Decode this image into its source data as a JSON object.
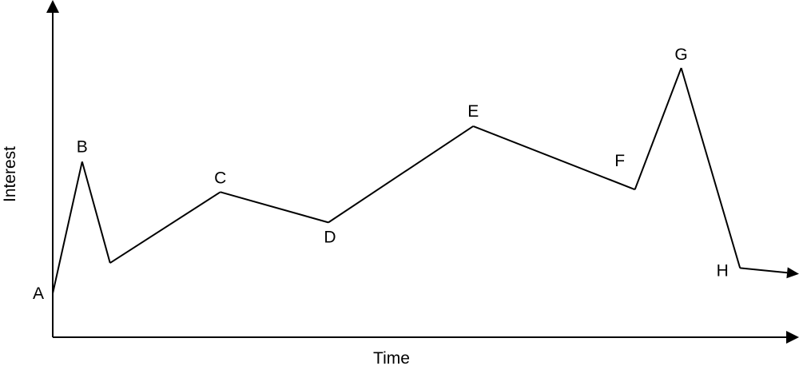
{
  "chart_data": {
    "type": "line",
    "title": "",
    "xlabel": "Time",
    "ylabel": "Interest",
    "xlim": [
      0,
      100
    ],
    "ylim": [
      0,
      100
    ],
    "grid": false,
    "legend": "none",
    "series": [
      {
        "name": "Interest",
        "points": [
          {
            "x": 0,
            "y": 11,
            "label": "A"
          },
          {
            "x": 4,
            "y": 63,
            "label": "B"
          },
          {
            "x": 7.8,
            "y": 23,
            "label": ""
          },
          {
            "x": 22.8,
            "y": 51,
            "label": "C"
          },
          {
            "x": 37.5,
            "y": 39,
            "label": "D"
          },
          {
            "x": 57.2,
            "y": 77,
            "label": "E"
          },
          {
            "x": 79.2,
            "y": 52,
            "label": "F"
          },
          {
            "x": 85.5,
            "y": 100,
            "label": "G"
          },
          {
            "x": 93.5,
            "y": 21,
            "label": "H"
          },
          {
            "x": 100,
            "y": 19,
            "label": ""
          }
        ]
      }
    ],
    "colors": {
      "line": "#000000",
      "axis": "#000000",
      "background": "#ffffff"
    }
  }
}
